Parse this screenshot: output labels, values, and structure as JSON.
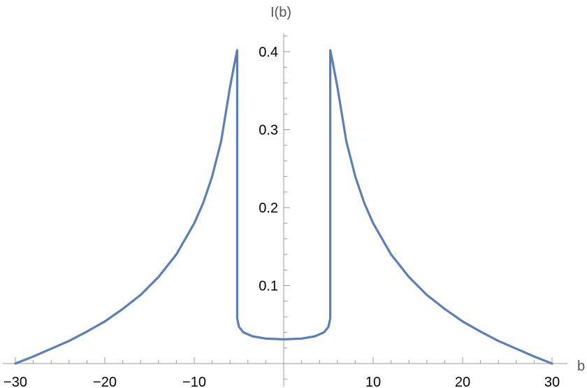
{
  "chart_data": {
    "type": "line",
    "title": "",
    "xlabel": "b",
    "ylabel": "I(b)",
    "xlim": [
      -30,
      30
    ],
    "ylim": [
      0,
      0.4
    ],
    "x_ticks": [
      -30,
      -20,
      -10,
      10,
      20,
      30
    ],
    "x_tick_labels": [
      "−30",
      "−20",
      "−10",
      "10",
      "20",
      "30"
    ],
    "y_ticks": [
      0.1,
      0.2,
      0.3,
      0.4
    ],
    "y_tick_labels": [
      "0.1",
      "0.2",
      "0.3",
      "0.4"
    ],
    "grid": false,
    "legend": "none",
    "series": [
      {
        "color": "#5b7fb5",
        "points": [
          [
            -30,
            0.0
          ],
          [
            -28,
            0.009
          ],
          [
            -26,
            0.019
          ],
          [
            -24,
            0.029
          ],
          [
            -22,
            0.041
          ],
          [
            -20,
            0.054
          ],
          [
            -18,
            0.07
          ],
          [
            -16,
            0.088
          ],
          [
            -14,
            0.111
          ],
          [
            -12,
            0.14
          ],
          [
            -10,
            0.18
          ],
          [
            -9,
            0.206
          ],
          [
            -8,
            0.24
          ],
          [
            -7,
            0.285
          ],
          [
            -6.5,
            0.32
          ],
          [
            -6,
            0.355
          ],
          [
            -5.5,
            0.385
          ],
          [
            -5.2,
            0.402
          ],
          [
            -5.2,
            0.058
          ],
          [
            -5.0,
            0.047
          ],
          [
            -4.5,
            0.04
          ],
          [
            -3.5,
            0.035
          ],
          [
            -2,
            0.032
          ],
          [
            0,
            0.031
          ],
          [
            2,
            0.032
          ],
          [
            3.5,
            0.035
          ],
          [
            4.5,
            0.04
          ],
          [
            5.0,
            0.047
          ],
          [
            5.2,
            0.058
          ],
          [
            5.2,
            0.402
          ],
          [
            5.5,
            0.385
          ],
          [
            6,
            0.355
          ],
          [
            6.5,
            0.32
          ],
          [
            7,
            0.285
          ],
          [
            8,
            0.24
          ],
          [
            9,
            0.206
          ],
          [
            10,
            0.18
          ],
          [
            12,
            0.14
          ],
          [
            14,
            0.111
          ],
          [
            16,
            0.088
          ],
          [
            18,
            0.07
          ],
          [
            20,
            0.054
          ],
          [
            22,
            0.041
          ],
          [
            24,
            0.029
          ],
          [
            26,
            0.019
          ],
          [
            28,
            0.009
          ],
          [
            30,
            0.0
          ]
        ]
      }
    ]
  }
}
